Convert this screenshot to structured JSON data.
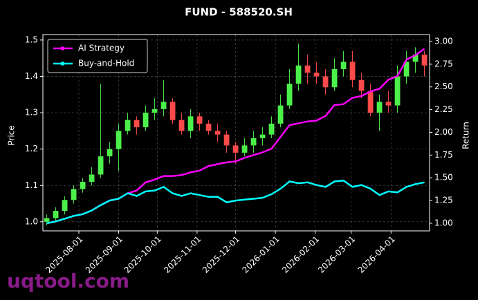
{
  "watermark": "uqtool.com",
  "chart_data": {
    "type": "candlestick",
    "title": "FUND - 588520.SH",
    "ylabel": "Price",
    "y2label": "Return",
    "x": [
      "2025-07-07",
      "2025-07-14",
      "2025-07-21",
      "2025-07-28",
      "2025-08-04",
      "2025-08-11",
      "2025-08-18",
      "2025-08-25",
      "2025-09-01",
      "2025-09-08",
      "2025-09-15",
      "2025-09-22",
      "2025-09-29",
      "2025-10-06",
      "2025-10-13",
      "2025-10-20",
      "2025-10-27",
      "2025-11-03",
      "2025-11-10",
      "2025-11-17",
      "2025-11-24",
      "2025-12-01",
      "2025-12-08",
      "2025-12-15",
      "2025-12-22",
      "2025-12-29",
      "2026-01-05",
      "2026-01-12",
      "2026-01-19",
      "2026-01-26",
      "2026-02-02",
      "2026-02-09",
      "2026-02-16",
      "2026-02-23",
      "2026-03-02",
      "2026-03-09",
      "2026-03-16",
      "2026-03-23",
      "2026-03-30",
      "2026-04-06",
      "2026-04-13",
      "2026-04-20",
      "2026-04-27"
    ],
    "open": [
      1.0,
      1.01,
      1.03,
      1.06,
      1.09,
      1.11,
      1.13,
      1.18,
      1.2,
      1.25,
      1.28,
      1.26,
      1.3,
      1.31,
      1.33,
      1.28,
      1.25,
      1.29,
      1.27,
      1.25,
      1.24,
      1.21,
      1.19,
      1.21,
      1.23,
      1.24,
      1.27,
      1.32,
      1.38,
      1.43,
      1.41,
      1.4,
      1.37,
      1.42,
      1.44,
      1.39,
      1.36,
      1.3,
      1.33,
      1.32,
      1.4,
      1.44,
      1.46
    ],
    "high": [
      1.02,
      1.04,
      1.07,
      1.1,
      1.12,
      1.15,
      1.38,
      1.22,
      1.27,
      1.3,
      1.29,
      1.32,
      1.34,
      1.39,
      1.34,
      1.3,
      1.31,
      1.3,
      1.28,
      1.27,
      1.25,
      1.22,
      1.23,
      1.25,
      1.26,
      1.29,
      1.35,
      1.42,
      1.49,
      1.46,
      1.44,
      1.42,
      1.45,
      1.47,
      1.47,
      1.41,
      1.38,
      1.35,
      1.36,
      1.43,
      1.47,
      1.48,
      1.47
    ],
    "low": [
      0.99,
      1.0,
      1.02,
      1.05,
      1.08,
      1.1,
      1.12,
      1.16,
      1.14,
      1.24,
      1.24,
      1.25,
      1.28,
      1.29,
      1.27,
      1.24,
      1.23,
      1.25,
      1.24,
      1.22,
      1.19,
      1.16,
      1.18,
      1.19,
      1.21,
      1.23,
      1.26,
      1.31,
      1.36,
      1.38,
      1.38,
      1.35,
      1.36,
      1.4,
      1.37,
      1.34,
      1.29,
      1.25,
      1.3,
      1.3,
      1.38,
      1.41,
      1.4
    ],
    "close": [
      1.01,
      1.03,
      1.06,
      1.09,
      1.11,
      1.13,
      1.18,
      1.2,
      1.25,
      1.28,
      1.26,
      1.3,
      1.31,
      1.33,
      1.28,
      1.25,
      1.29,
      1.27,
      1.25,
      1.24,
      1.21,
      1.19,
      1.21,
      1.23,
      1.24,
      1.27,
      1.32,
      1.38,
      1.43,
      1.41,
      1.4,
      1.37,
      1.42,
      1.44,
      1.39,
      1.36,
      1.3,
      1.33,
      1.32,
      1.4,
      1.44,
      1.46,
      1.43
    ],
    "up_color": "#4cf04a",
    "down_color": "#ff4a4a",
    "series": [
      {
        "name": "AI Strategy",
        "color": "#ff00ff",
        "axis": "y2",
        "values": [
          1.0,
          1.02,
          1.05,
          1.08,
          1.1,
          1.14,
          1.2,
          1.25,
          1.27,
          1.33,
          1.36,
          1.45,
          1.48,
          1.52,
          1.52,
          1.53,
          1.56,
          1.58,
          1.63,
          1.65,
          1.67,
          1.68,
          1.72,
          1.75,
          1.78,
          1.82,
          1.95,
          2.08,
          2.1,
          2.12,
          2.13,
          2.18,
          2.3,
          2.31,
          2.38,
          2.4,
          2.45,
          2.48,
          2.58,
          2.62,
          2.8,
          2.85,
          2.92
        ]
      },
      {
        "name": "Buy-and-Hold",
        "color": "#00ffff",
        "axis": "y2",
        "values": [
          1.0,
          1.02,
          1.05,
          1.08,
          1.1,
          1.14,
          1.2,
          1.25,
          1.27,
          1.33,
          1.3,
          1.35,
          1.36,
          1.4,
          1.33,
          1.3,
          1.33,
          1.31,
          1.29,
          1.29,
          1.23,
          1.25,
          1.26,
          1.27,
          1.28,
          1.32,
          1.38,
          1.46,
          1.44,
          1.45,
          1.42,
          1.4,
          1.46,
          1.47,
          1.4,
          1.42,
          1.38,
          1.31,
          1.35,
          1.34,
          1.4,
          1.43,
          1.45
        ]
      }
    ],
    "xlim": [
      "2025-07-04",
      "2026-05-01"
    ],
    "xticks": [
      "2025-08-01",
      "2025-09-01",
      "2025-10-01",
      "2025-11-01",
      "2025-12-01",
      "2026-01-01",
      "2026-02-01",
      "2026-03-01",
      "2026-04-01"
    ],
    "ylim": [
      0.975,
      1.515
    ],
    "yticks": [
      {
        "value": 1,
        "label": "1.0"
      },
      1.1,
      1.2,
      1.3,
      1.4,
      1.5
    ],
    "y2lim": [
      0.916,
      3.076
    ],
    "y2ticks": [
      {
        "value": 1,
        "label": "1.00"
      },
      1.25,
      {
        "value": 1.5,
        "label": "1.50"
      },
      1.75,
      {
        "value": 2,
        "label": "2.00"
      },
      2.25,
      {
        "value": 2.5,
        "label": "2.50"
      },
      2.75,
      {
        "value": 3,
        "label": "3.00"
      }
    ],
    "grid": true,
    "legend": "upper left"
  }
}
